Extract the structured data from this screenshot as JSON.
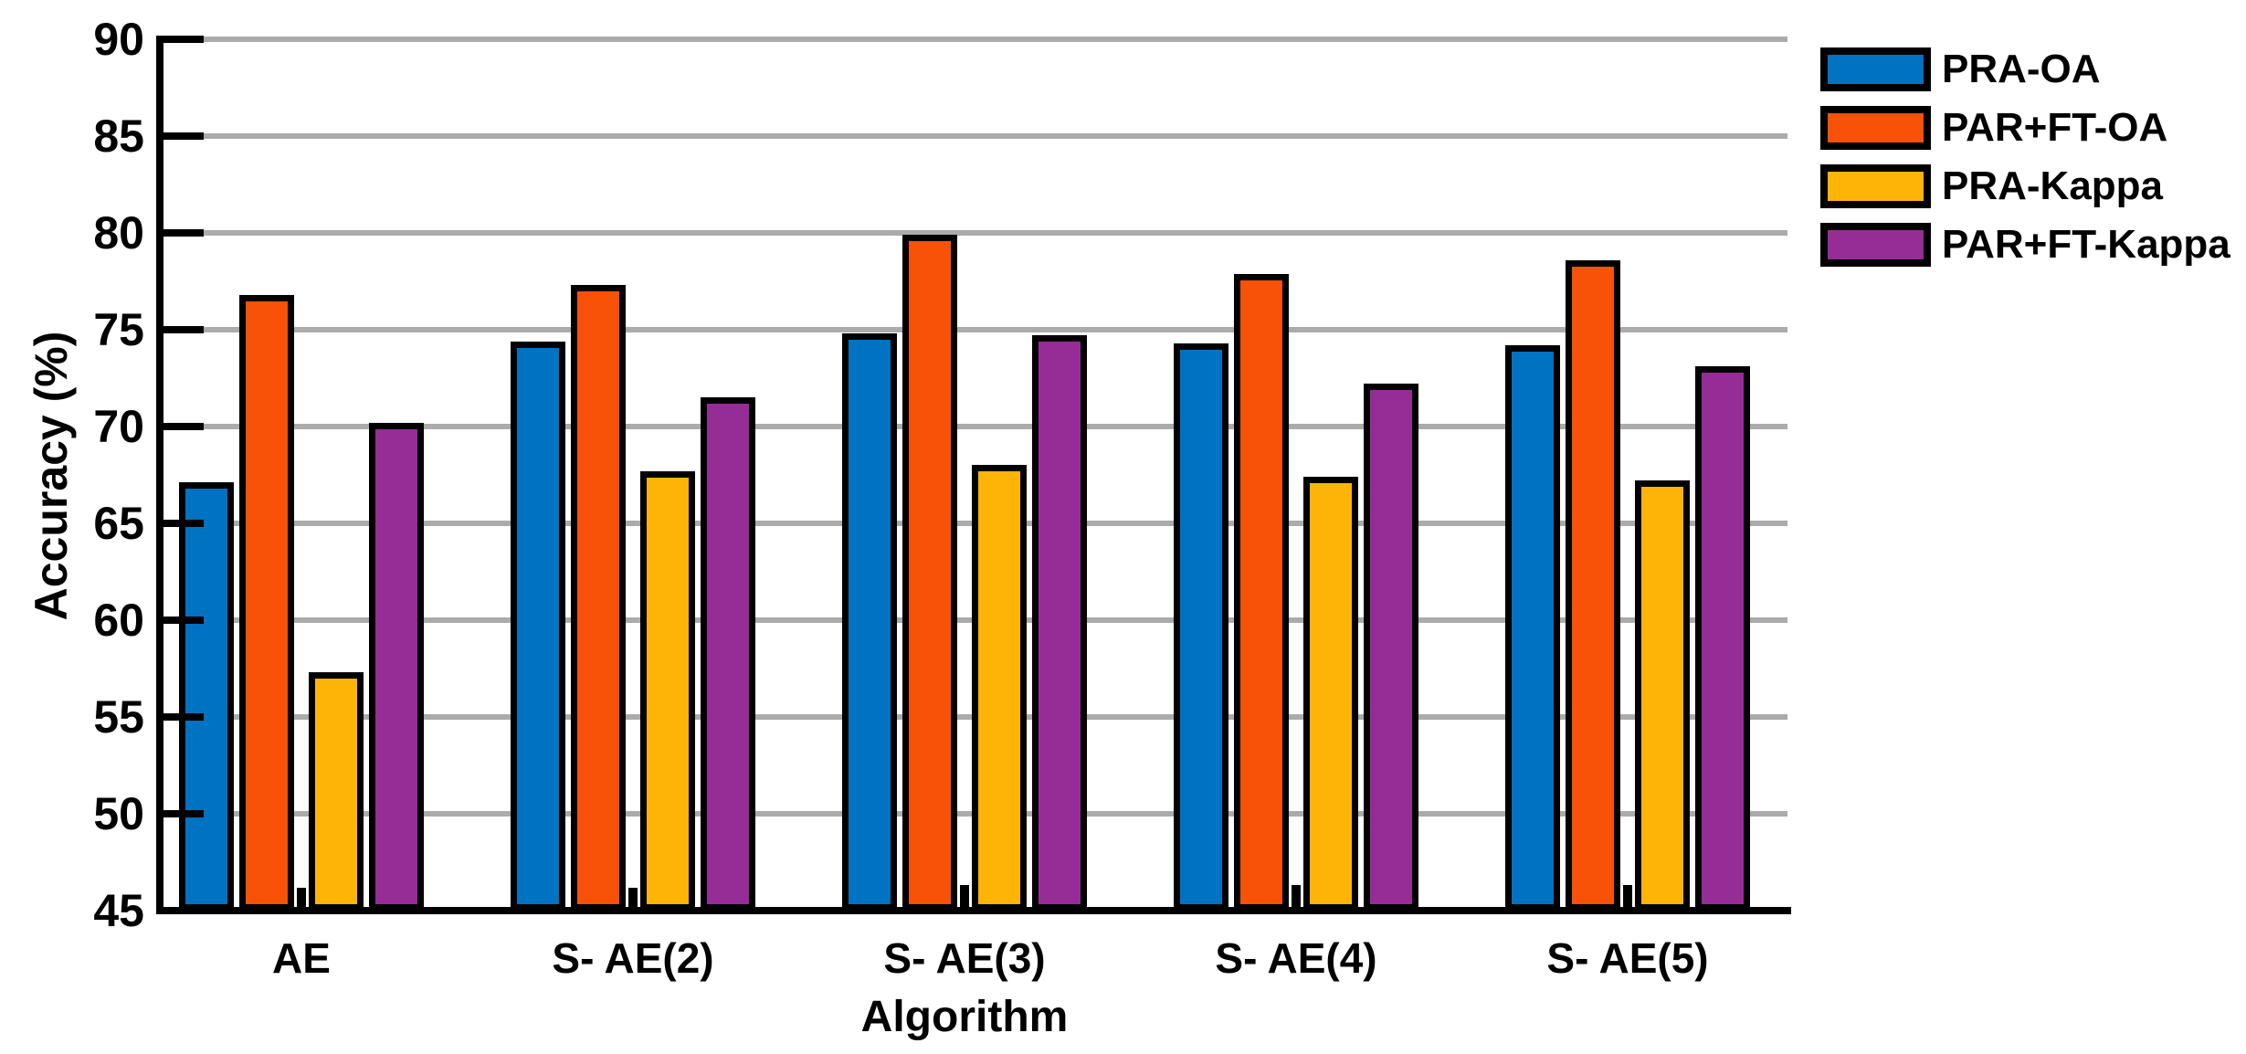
{
  "figure": {
    "background": "#FFFFFF"
  },
  "chart_data": {
    "type": "bar",
    "title": "",
    "xlabel": "Algorithm",
    "ylabel": "Accuracy (%)",
    "ylim": [
      45,
      90
    ],
    "yticks": [
      45,
      50,
      55,
      60,
      65,
      70,
      75,
      80,
      85,
      90
    ],
    "grid": "horizontal",
    "grid_color": "#ABABAB",
    "axis_color": "#000000",
    "bar_edge_color": "#000000",
    "legend_position": "top-right-outside",
    "categories": [
      "AE",
      "S- AE(2)",
      "S- AE(3)",
      "S- AE(4)",
      "S- AE(5)"
    ],
    "series": [
      {
        "name": "PRA-OA",
        "color": "#0072C2",
        "values": [
          67.1,
          74.4,
          74.8,
          74.3,
          74.2
        ]
      },
      {
        "name": "PAR+FT-OA",
        "color": "#F85108",
        "values": [
          76.8,
          77.3,
          79.9,
          77.9,
          78.6
        ]
      },
      {
        "name": "PRA-Kappa",
        "color": "#FEB406",
        "values": [
          57.3,
          67.7,
          68.0,
          67.4,
          67.2
        ]
      },
      {
        "name": "PAR+FT-Kappa",
        "color": "#962D97",
        "values": [
          70.2,
          71.5,
          74.7,
          72.2,
          73.1
        ]
      }
    ],
    "baseline_stubs": {
      "color": "#000000",
      "values": [
        46.2,
        46.2,
        46.3,
        46.3,
        46.3
      ],
      "note": "tiny black bars at the baseline between the 2nd and 3rd bar of each group"
    }
  }
}
